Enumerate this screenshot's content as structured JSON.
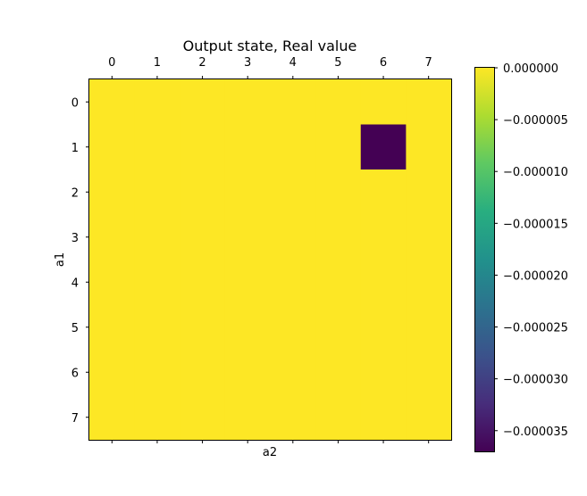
{
  "chart_data": {
    "type": "heatmap",
    "title": "Output state, Real value",
    "xlabel": "a2",
    "ylabel": "a1",
    "x_ticks": [
      "0",
      "1",
      "2",
      "3",
      "4",
      "5",
      "6",
      "7"
    ],
    "y_ticks": [
      "0",
      "1",
      "2",
      "3",
      "4",
      "5",
      "6",
      "7"
    ],
    "x_tick_position": "top",
    "colormap": "viridis",
    "vmin": -3.7e-05,
    "vmax": 0.0,
    "values": [
      [
        0,
        0,
        0,
        0,
        0,
        0,
        0,
        0
      ],
      [
        0,
        0,
        0,
        0,
        0,
        0,
        -3.7e-05,
        0
      ],
      [
        0,
        0,
        0,
        0,
        0,
        0,
        0,
        0
      ],
      [
        0,
        0,
        0,
        0,
        0,
        0,
        0,
        0
      ],
      [
        0,
        0,
        0,
        0,
        0,
        0,
        0,
        0
      ],
      [
        0,
        0,
        0,
        0,
        0,
        0,
        0,
        0
      ],
      [
        0,
        0,
        0,
        0,
        0,
        0,
        0,
        0
      ],
      [
        0,
        0,
        0,
        0,
        0,
        0,
        0,
        0
      ]
    ],
    "colorbar": {
      "tick_values": [
        0.0,
        -5e-06,
        -1e-05,
        -1.5e-05,
        -2e-05,
        -2.5e-05,
        -3e-05,
        -3.5e-05
      ],
      "tick_labels": [
        "0.000000",
        "−0.000005",
        "−0.000010",
        "−0.000015",
        "−0.000020",
        "−0.000025",
        "−0.000030",
        "−0.000035"
      ]
    },
    "colors": {
      "max_color": "#fde725",
      "min_color": "#440154"
    }
  }
}
